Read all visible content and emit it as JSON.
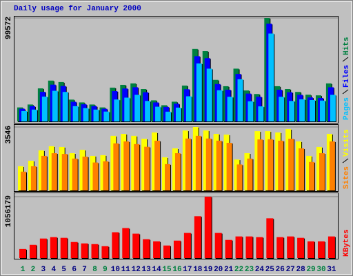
{
  "chart_data": [
    {
      "type": "bar",
      "title": "Daily usage for January 2000",
      "title_color": "#0000c0",
      "ylim": [
        0,
        99572
      ],
      "yticks": [
        99572
      ],
      "grid": true,
      "series": [
        {
          "name": "Hits",
          "color": "#008040",
          "values": [
            13500,
            16300,
            31800,
            39300,
            37900,
            21000,
            18300,
            16300,
            13500,
            32500,
            35200,
            36600,
            31200,
            20300,
            15600,
            19000,
            34500,
            69800,
            67700,
            40000,
            33900,
            50800,
            29800,
            26400,
            99572,
            33900,
            31200,
            28400,
            25700,
            25100,
            36600
          ]
        },
        {
          "name": "Files",
          "color": "#0000ff",
          "values": [
            12200,
            14700,
            28500,
            35400,
            34100,
            18900,
            16500,
            14700,
            12200,
            29200,
            31700,
            32900,
            28100,
            18300,
            14000,
            17100,
            31000,
            62800,
            60900,
            36000,
            30500,
            45700,
            26800,
            23800,
            94000,
            30500,
            28100,
            25600,
            23100,
            22600,
            32900
          ]
        },
        {
          "name": "Pages",
          "color": "#00c0ff",
          "values": [
            10000,
            11400,
            23900,
            29500,
            28400,
            14700,
            12800,
            11400,
            9500,
            21100,
            22900,
            25600,
            19700,
            14200,
            9400,
            13300,
            24200,
            55800,
            50800,
            30000,
            23700,
            40600,
            19400,
            14500,
            84600,
            23700,
            19700,
            21300,
            20600,
            20100,
            25600
          ]
        }
      ]
    },
    {
      "type": "bar",
      "ylim": [
        0,
        3546
      ],
      "yticks": [
        3546
      ],
      "grid": true,
      "series": [
        {
          "name": "Visits",
          "color": "#ffff00",
          "values": [
            1350,
            1660,
            2240,
            2470,
            2430,
            2080,
            2270,
            1930,
            1970,
            3050,
            3160,
            3050,
            2890,
            3240,
            1850,
            2350,
            3350,
            3546,
            3350,
            3160,
            3120,
            1730,
            2080,
            3310,
            3310,
            3240,
            3430,
            2740,
            1930,
            2430,
            3160
          ]
        },
        {
          "name": "Sites",
          "color": "#ff8000",
          "values": [
            1050,
            1350,
            1930,
            2080,
            2040,
            1780,
            1890,
            1560,
            1630,
            2630,
            2740,
            2590,
            2440,
            2780,
            1470,
            2080,
            2900,
            3050,
            2900,
            2780,
            2660,
            1450,
            1780,
            2850,
            2860,
            2780,
            2890,
            2350,
            1590,
            2080,
            2740
          ]
        }
      ]
    },
    {
      "type": "bar",
      "ylim": [
        0,
        1056179
      ],
      "yticks": [
        1056179
      ],
      "grid": true,
      "categories": [
        "1",
        "2",
        "3",
        "4",
        "5",
        "6",
        "7",
        "8",
        "9",
        "10",
        "11",
        "12",
        "13",
        "14",
        "15",
        "16",
        "17",
        "18",
        "19",
        "20",
        "21",
        "22",
        "23",
        "24",
        "25",
        "26",
        "27",
        "28",
        "29",
        "30",
        "31"
      ],
      "category_colors": [
        "#008040",
        "#008040",
        "#000080",
        "#000080",
        "#000080",
        "#000080",
        "#000080",
        "#008040",
        "#008040",
        "#000080",
        "#000080",
        "#000080",
        "#000080",
        "#000080",
        "#008040",
        "#008040",
        "#000080",
        "#000080",
        "#000080",
        "#000080",
        "#000080",
        "#008040",
        "#008040",
        "#000080",
        "#000080",
        "#000080",
        "#000080",
        "#000080",
        "#008040",
        "#008040",
        "#000080"
      ],
      "series": [
        {
          "name": "KBytes",
          "color": "#ff0000",
          "values": [
            156000,
            228000,
            336000,
            360000,
            348000,
            276000,
            252000,
            240000,
            204000,
            444000,
            516000,
            420000,
            324000,
            288000,
            216000,
            300000,
            432000,
            720000,
            1056179,
            432000,
            312000,
            372000,
            372000,
            360000,
            684000,
            360000,
            372000,
            348000,
            288000,
            288000,
            372000
          ]
        }
      ]
    }
  ]
}
